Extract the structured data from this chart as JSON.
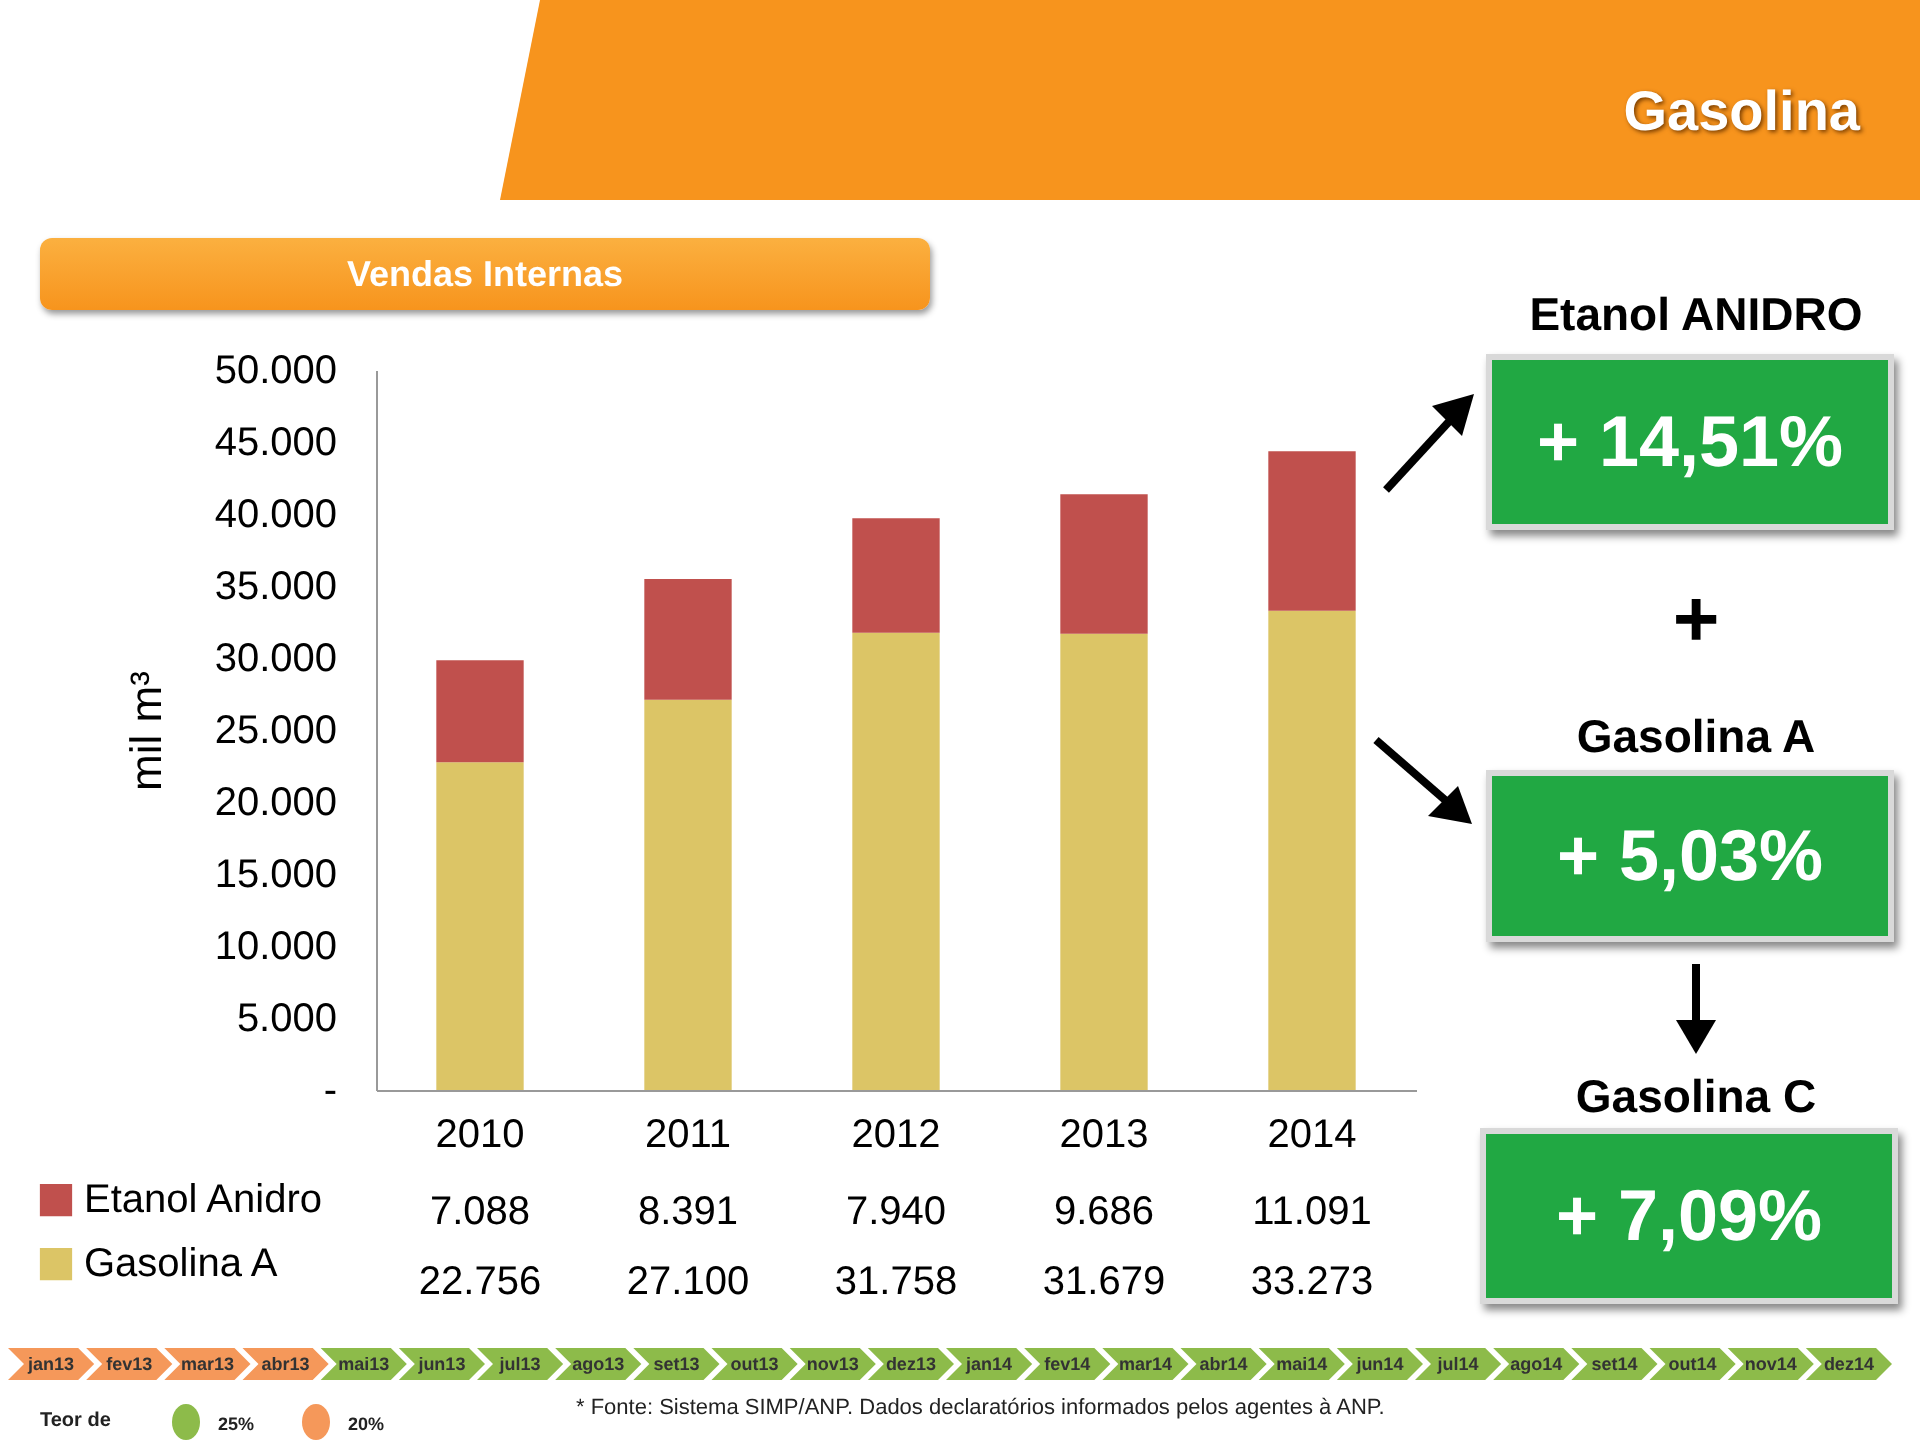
{
  "chart_data": {
    "type": "bar",
    "title": "Gasolina",
    "subtitle": "Vendas Internas",
    "ylabel": "mil m³",
    "categories": [
      "2010",
      "2011",
      "2012",
      "2013",
      "2014"
    ],
    "series": [
      {
        "name": "Gasolina A",
        "color": "#dcc566",
        "values": [
          22756,
          27100,
          31758,
          31679,
          33273
        ],
        "value_labels": [
          "22.756",
          "27.100",
          "31.758",
          "31.679",
          "33.273"
        ]
      },
      {
        "name": "Etanol Anidro",
        "color": "#c0504d",
        "values": [
          7088,
          8391,
          7940,
          9686,
          11091
        ],
        "value_labels": [
          "7.088",
          "8.391",
          "7.940",
          "9.686",
          "11.091"
        ]
      }
    ],
    "stacked": true,
    "ylim": [
      0,
      50000
    ],
    "yticks": [
      {
        "value": 0,
        "label": "-"
      },
      {
        "value": 5000,
        "label": "5.000"
      },
      {
        "value": 10000,
        "label": "10.000"
      },
      {
        "value": 15000,
        "label": "15.000"
      },
      {
        "value": 20000,
        "label": "20.000"
      },
      {
        "value": 25000,
        "label": "25.000"
      },
      {
        "value": 30000,
        "label": "30.000"
      },
      {
        "value": 35000,
        "label": "35.000"
      },
      {
        "value": 40000,
        "label": "40.000"
      },
      {
        "value": 45000,
        "label": "45.000"
      },
      {
        "value": 50000,
        "label": "50.000"
      }
    ],
    "grid": false,
    "legend": "bottom left",
    "annotations": [
      "Etanol ANIDRO",
      "+ 14,51%",
      "+",
      "Gasolina A",
      "+ 5,03%",
      "Gasolina C",
      "+ 7,09%",
      "* Fonte: Sistema SIMP/ANP. Dados declaratórios informados pelos agentes à ANP.",
      "Teor de",
      "25%",
      "20%",
      "jan13",
      "fev13",
      "mar13",
      "abr13",
      "mai13",
      "jun13",
      "jul13",
      "ago13",
      "set13",
      "out13",
      "nov13",
      "dez13",
      "jan14",
      "fev14",
      "mar14",
      "abr14",
      "mai14",
      "jun14",
      "jul14",
      "ago14",
      "set14",
      "out14",
      "nov14",
      "dez14"
    ]
  }
}
